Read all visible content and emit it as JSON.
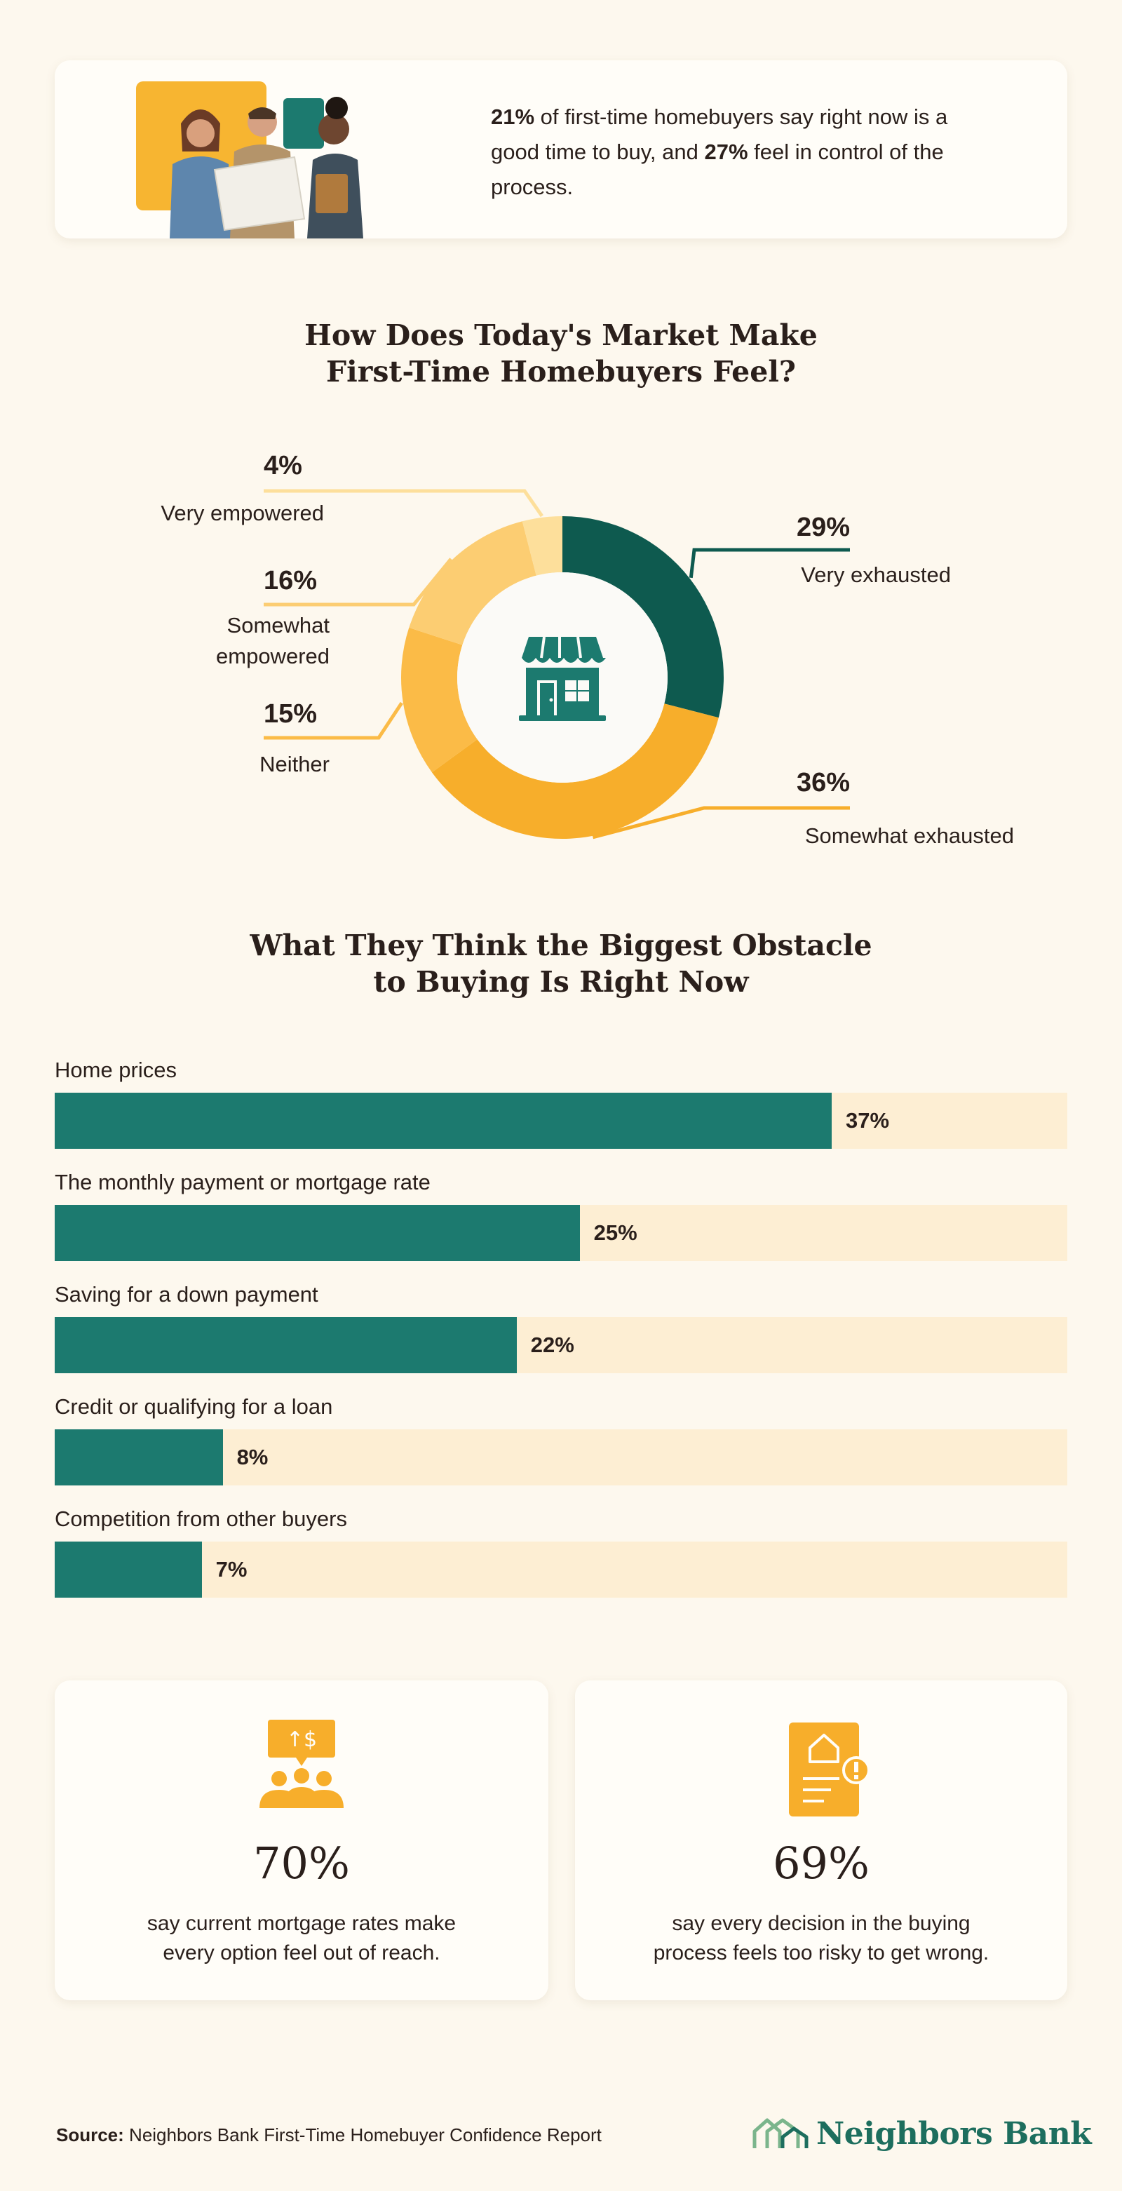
{
  "hero": {
    "pct1": "21%",
    "text1": " of first-time homebuyers say right now is a good time to buy, and ",
    "pct2": "27%",
    "text2": " feel in control of the process."
  },
  "donut_section": {
    "title_line1": "How Does Today's Market Make",
    "title_line2": "First-Time Homebuyers Feel?"
  },
  "bars_section": {
    "title_line1": "What They Think the Biggest Obstacle",
    "title_line2": "to Buying Is Right Now"
  },
  "chart_data": [
    {
      "type": "pie",
      "title": "How Does Today's Market Make First-Time Homebuyers Feel?",
      "categories": [
        "Very exhausted",
        "Somewhat exhausted",
        "Neither",
        "Somewhat empowered",
        "Very empowered"
      ],
      "values": [
        29,
        36,
        15,
        16,
        4
      ],
      "value_labels": [
        "29%",
        "36%",
        "15%",
        "16%",
        "4%"
      ],
      "label_lines": [
        [
          "Very exhausted"
        ],
        [
          "Somewhat exhausted"
        ],
        [
          "Neither"
        ],
        [
          "Somewhat",
          "empowered"
        ],
        [
          "Very empowered"
        ]
      ],
      "colors": [
        "#0e5a4f",
        "#f7ae2b",
        "#fbbb47",
        "#fccd72",
        "#fddf9b"
      ],
      "center_icon": "storefront-icon"
    },
    {
      "type": "bar",
      "orientation": "horizontal",
      "title": "What They Think the Biggest Obstacle to Buying Is Right Now",
      "categories": [
        "Home prices",
        "The monthly payment or mortgage rate",
        "Saving for a down payment",
        "Credit or qualifying for a loan",
        "Competition from other buyers"
      ],
      "values": [
        37,
        25,
        22,
        8,
        7
      ],
      "value_labels": [
        "37%",
        "25%",
        "22%",
        "8%",
        "7%"
      ],
      "bar_color": "#1c7a6f",
      "track_color": "#fdeed3"
    }
  ],
  "stats": [
    {
      "value": "70%",
      "line1": "say current mortgage rates make",
      "line2": "every option feel out of reach.",
      "icon": "people-dollar-icon"
    },
    {
      "value": "69%",
      "line1": "say every decision in the buying",
      "line2": "process feels too risky to get wrong.",
      "icon": "document-warning-icon"
    }
  ],
  "footer": {
    "source_label": "Source:",
    "source_text": " Neighbors Bank First-Time Homebuyer Confidence Report",
    "brand": "Neighbors Bank"
  },
  "colors": {
    "accent": "#f7ae2b",
    "teal": "#1c7a6f",
    "dark_teal": "#0e5a4f",
    "background": "#fdf8ee"
  }
}
